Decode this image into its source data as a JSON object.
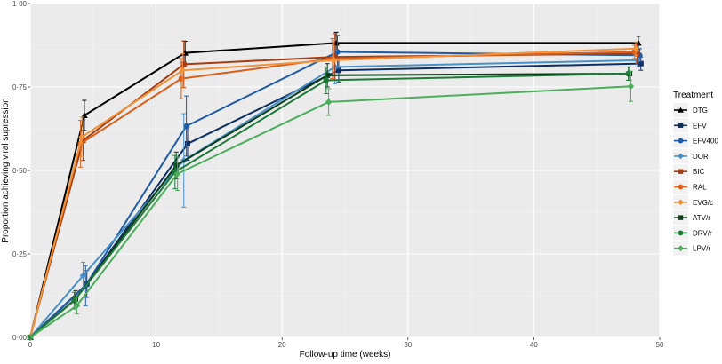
{
  "chart_data": {
    "type": "line",
    "xlabel": "Follow-up time (weeks)",
    "ylabel": "Proportion achieving viral supression",
    "xlim": [
      0,
      50
    ],
    "ylim": [
      0,
      1
    ],
    "x_ticks": [
      "0",
      "10",
      "20",
      "30",
      "40",
      "50"
    ],
    "y_ticks": [
      "0·00",
      "0·25",
      "0·50",
      "0·75",
      "1·00"
    ],
    "grid": true,
    "legend": {
      "title": "Treatment",
      "placement": "right"
    },
    "series": [
      {
        "name": "DTG",
        "color": "#000000",
        "marker": "triangle",
        "x": [
          0,
          4.3,
          12.3,
          24.3,
          48.3
        ],
        "y": [
          0,
          0.665,
          0.852,
          0.882,
          0.882
        ],
        "err": [
          0,
          0.045,
          0.035,
          0.032,
          0.02
        ]
      },
      {
        "name": "EFV",
        "color": "#0d2f63",
        "marker": "square",
        "x": [
          0,
          4.5,
          12.5,
          24.5,
          48.5
        ],
        "y": [
          0,
          0.16,
          0.58,
          0.8,
          0.82
        ],
        "err": [
          0,
          0.04,
          0.05,
          0.035,
          0.02
        ]
      },
      {
        "name": "EFV400",
        "color": "#1f5aa6",
        "marker": "circle",
        "x": [
          0,
          4.4,
          12.4,
          24.4,
          48.4
        ],
        "y": [
          0,
          0.155,
          0.633,
          0.855,
          0.845
        ],
        "err": [
          0,
          0.06,
          0.09,
          0.05,
          0.02
        ]
      },
      {
        "name": "DOR",
        "color": "#4a90c8",
        "marker": "diamond",
        "x": [
          0,
          4.2,
          12.2,
          24.2,
          48.2
        ],
        "y": [
          0,
          0.185,
          0.53,
          0.81,
          0.83
        ],
        "err": [
          0,
          0.04,
          0.14,
          0.05,
          0.02
        ]
      },
      {
        "name": "BIC",
        "color": "#a63d12",
        "marker": "square",
        "x": [
          0,
          4.2,
          12.2,
          24.2,
          48.2
        ],
        "y": [
          0,
          0.59,
          0.818,
          0.84,
          0.85
        ],
        "err": [
          0,
          0.06,
          0.07,
          0.07,
          0.03
        ]
      },
      {
        "name": "RAL",
        "color": "#d95f1a",
        "marker": "circle",
        "x": [
          0,
          4.0,
          12.0,
          24.0,
          48.0
        ],
        "y": [
          0,
          0.58,
          0.775,
          0.835,
          0.855
        ],
        "err": [
          0,
          0.07,
          0.06,
          0.06,
          0.02
        ]
      },
      {
        "name": "EVG/c",
        "color": "#f2933a",
        "marker": "diamond",
        "x": [
          0,
          4.1,
          12.1,
          24.1,
          48.1
        ],
        "y": [
          0,
          0.6,
          0.8,
          0.83,
          0.865
        ],
        "err": [
          0,
          0.06,
          0.05,
          0.06,
          0.02
        ]
      },
      {
        "name": "ATV/r",
        "color": "#0b3d1b",
        "marker": "square",
        "x": [
          0,
          3.6,
          11.6,
          23.6,
          47.6
        ],
        "y": [
          0,
          0.115,
          0.515,
          0.785,
          0.79
        ],
        "err": [
          0,
          0.025,
          0.04,
          0.035,
          0.02
        ]
      },
      {
        "name": "DRV/r",
        "color": "#1f7a3a",
        "marker": "circle",
        "x": [
          0,
          3.5,
          11.5,
          23.5,
          47.5
        ],
        "y": [
          0,
          0.11,
          0.495,
          0.77,
          0.79
        ],
        "err": [
          0,
          0.025,
          0.05,
          0.04,
          0.02
        ]
      },
      {
        "name": "LPV/r",
        "color": "#4cae5c",
        "marker": "diamond",
        "x": [
          0,
          3.7,
          11.7,
          23.7,
          47.7
        ],
        "y": [
          0,
          0.095,
          0.49,
          0.705,
          0.752
        ],
        "err": [
          0,
          0.025,
          0.05,
          0.04,
          0.045
        ]
      }
    ]
  }
}
